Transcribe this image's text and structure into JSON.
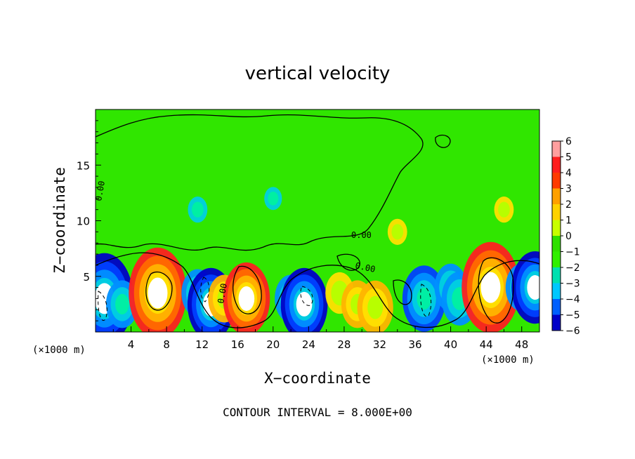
{
  "chart_data": {
    "type": "heatmap",
    "title": "vertical velocity",
    "xlabel": "X−coordinate",
    "ylabel": "Z−coordinate",
    "x_unit_left": "(×1000 m)",
    "x_unit_right": "(×1000 m)",
    "xlim": [
      0,
      50
    ],
    "ylim": [
      0,
      20
    ],
    "x_ticks": [
      "4",
      "8",
      "12",
      "16",
      "20",
      "24",
      "28",
      "32",
      "36",
      "40",
      "44",
      "48"
    ],
    "y_ticks": [
      "5",
      "10",
      "15"
    ],
    "contour_labels": [
      "0.00",
      "0.00",
      "0.00",
      "0.00"
    ],
    "colorbar": {
      "ticks": [
        "6",
        "5",
        "4",
        "3",
        "2",
        "1",
        "0",
        "−1",
        "−2",
        "−3",
        "−4",
        "−5",
        "−6"
      ],
      "colors": [
        "#ff9f9f",
        "#ff1e1e",
        "#ff3a00",
        "#ffa000",
        "#ffd200",
        "#c8ff00",
        "#2fe000",
        "#30f000",
        "#00e0b0",
        "#00c8ff",
        "#0060ff",
        "#0000c8",
        "#8000a0"
      ]
    },
    "cells": [
      {
        "x": 1,
        "z": 3,
        "w": -12
      },
      {
        "x": 3,
        "z": 2.5,
        "w": -5
      },
      {
        "x": 7,
        "z": 3.5,
        "w": 12
      },
      {
        "x": 11.5,
        "z": 3.5,
        "w": -5
      },
      {
        "x": 13,
        "z": 2.5,
        "w": -9
      },
      {
        "x": 14.5,
        "z": 3,
        "w": 5
      },
      {
        "x": 17,
        "z": 3,
        "w": 9
      },
      {
        "x": 22,
        "z": 3,
        "w": -5
      },
      {
        "x": 23.5,
        "z": 2.5,
        "w": -9
      },
      {
        "x": 27.5,
        "z": 3.5,
        "w": 4
      },
      {
        "x": 29.5,
        "z": 2.5,
        "w": 5
      },
      {
        "x": 31.5,
        "z": 2.2,
        "w": 6
      },
      {
        "x": 37,
        "z": 3,
        "w": -8
      },
      {
        "x": 40,
        "z": 4,
        "w": -5
      },
      {
        "x": 41,
        "z": 3,
        "w": -6
      },
      {
        "x": 44.5,
        "z": 4,
        "w": 12
      },
      {
        "x": 48,
        "z": 4,
        "w": -5
      },
      {
        "x": 49.5,
        "z": 4,
        "w": -9
      },
      {
        "x": 11.5,
        "z": 11,
        "w": -1.5
      },
      {
        "x": 20,
        "z": 12,
        "w": -1
      },
      {
        "x": 34,
        "z": 9,
        "w": 1.5
      },
      {
        "x": 46,
        "z": 11,
        "w": 1.5
      }
    ]
  },
  "contour_interval_text": "CONTOUR INTERVAL = 8.000E+00"
}
